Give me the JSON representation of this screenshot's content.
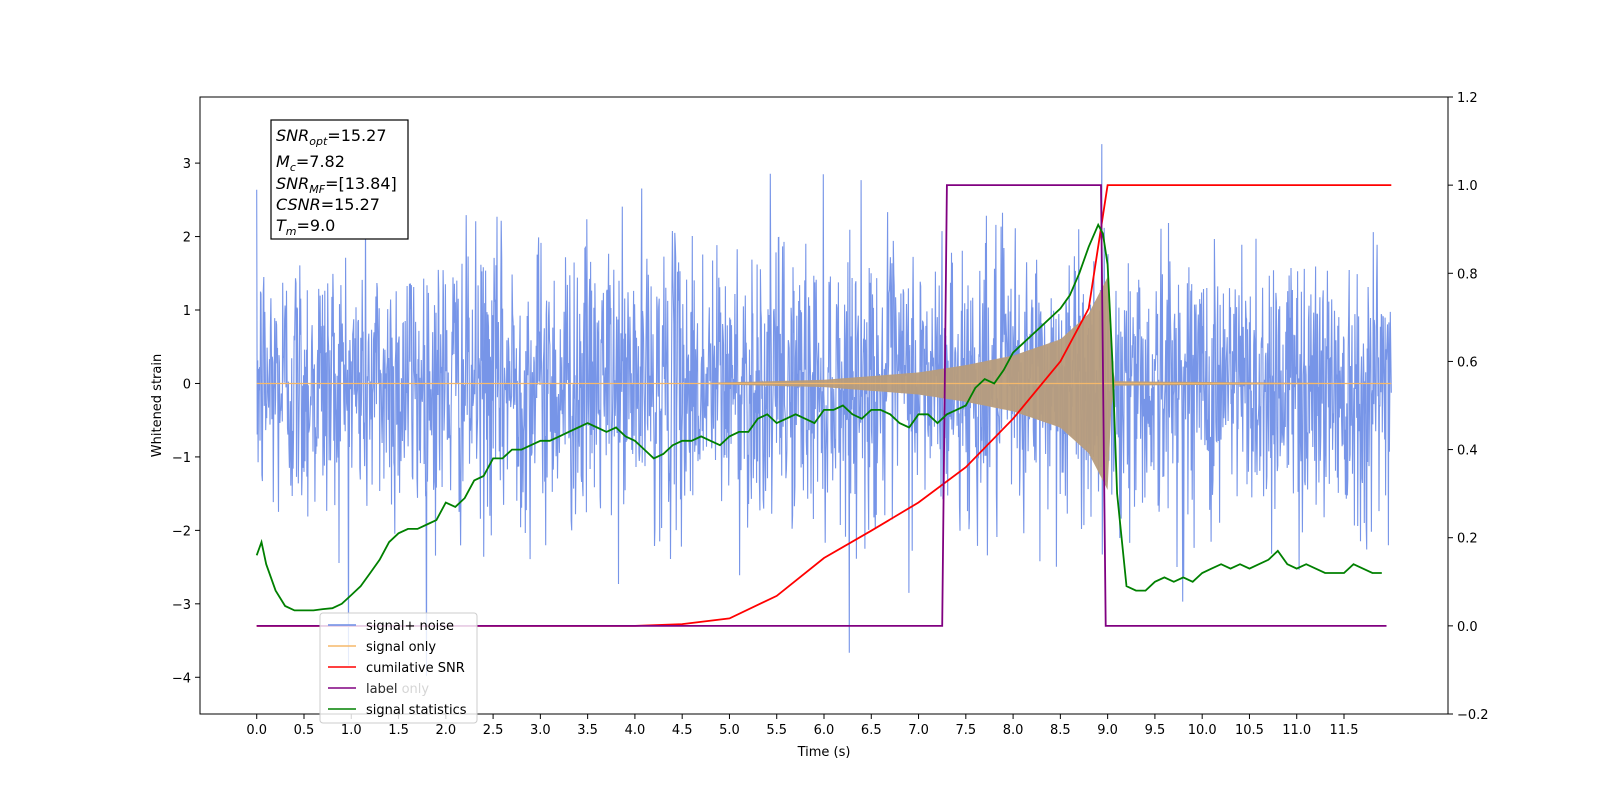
{
  "chart_data": {
    "type": "line",
    "title": "",
    "xlabel": "Time (s)",
    "ylabel": "Whitened strain",
    "xlim": [
      -0.6,
      12.6
    ],
    "ylim": [
      -4.5,
      3.9
    ],
    "y2lim": [
      -0.2,
      1.2
    ],
    "x_ticks": [
      0.0,
      0.5,
      1.0,
      1.5,
      2.0,
      2.5,
      3.0,
      3.5,
      4.0,
      4.5,
      5.0,
      5.5,
      6.0,
      6.5,
      7.0,
      7.5,
      8.0,
      8.5,
      9.0,
      9.5,
      10.0,
      10.5,
      11.0,
      11.5
    ],
    "x_tick_labels": [
      "0.0",
      "0.5",
      "1.0",
      "1.5",
      "2.0",
      "2.5",
      "3.0",
      "3.5",
      "4.0",
      "4.5",
      "5.0",
      "5.5",
      "6.0",
      "6.5",
      "7.0",
      "7.5",
      "8.0",
      "8.5",
      "9.0",
      "9.5",
      "10.0",
      "10.5",
      "11.0",
      "11.5"
    ],
    "y_ticks": [
      3,
      2,
      1,
      0,
      -1,
      -2,
      -3,
      -4
    ],
    "y_tick_labels": [
      "3",
      "2",
      "1",
      "0",
      "−1",
      "−2",
      "−3",
      "−4"
    ],
    "y2_ticks": [
      1.2,
      1.0,
      0.8,
      0.6,
      0.4,
      0.2,
      0.0,
      -0.2
    ],
    "y2_tick_labels": [
      "1.2",
      "1.0",
      "0.8",
      "0.6",
      "0.4",
      "0.2",
      "0.0",
      "−0.2"
    ],
    "grid": false,
    "legend_position": "bottom-left",
    "series": [
      {
        "name": "signal+ noise",
        "axis": "left",
        "color": "#6b8ce6",
        "description_stats": {
          "x_range": [
            0.0,
            12.0
          ],
          "typical_amplitude": 1.0,
          "max": 3.4,
          "min": -4.1
        }
      },
      {
        "name": "signal only",
        "axis": "left",
        "color": "#f5b86a",
        "envelope": {
          "x": [
            0.0,
            4.5,
            6.0,
            7.0,
            7.5,
            8.0,
            8.5,
            8.8,
            9.0,
            9.05,
            12.0
          ],
          "y": [
            0.0,
            0.0,
            0.05,
            0.15,
            0.25,
            0.38,
            0.6,
            0.95,
            1.45,
            0.03,
            0.0
          ]
        }
      },
      {
        "name": "cumilative SNR",
        "axis": "right",
        "color": "#ff0000",
        "x": [
          0.0,
          4.0,
          4.5,
          5.0,
          5.5,
          6.0,
          6.5,
          7.0,
          7.5,
          8.0,
          8.5,
          8.8,
          9.0,
          12.0
        ],
        "y": [
          0.0,
          0.0,
          0.004,
          0.017,
          0.068,
          0.154,
          0.216,
          0.28,
          0.36,
          0.47,
          0.6,
          0.72,
          1.0,
          1.0
        ]
      },
      {
        "name": "label",
        "axis": "right",
        "color": "#800080",
        "x": [
          0.0,
          7.25,
          7.3,
          8.93,
          8.98,
          11.95
        ],
        "y": [
          0.0,
          0.0,
          1.0,
          1.0,
          0.0,
          0.0
        ]
      },
      {
        "name": "signal statistics",
        "axis": "right",
        "color": "#008000",
        "x": [
          0.0,
          0.05,
          0.1,
          0.2,
          0.3,
          0.4,
          0.5,
          0.6,
          0.7,
          0.8,
          0.9,
          1.0,
          1.1,
          1.2,
          1.3,
          1.4,
          1.5,
          1.6,
          1.7,
          1.8,
          1.9,
          2.0,
          2.1,
          2.2,
          2.3,
          2.4,
          2.5,
          2.6,
          2.7,
          2.8,
          2.9,
          3.0,
          3.1,
          3.2,
          3.3,
          3.4,
          3.5,
          3.6,
          3.7,
          3.8,
          3.9,
          4.0,
          4.1,
          4.2,
          4.3,
          4.4,
          4.5,
          4.6,
          4.7,
          4.8,
          4.9,
          5.0,
          5.1,
          5.2,
          5.3,
          5.4,
          5.5,
          5.6,
          5.7,
          5.8,
          5.9,
          6.0,
          6.1,
          6.2,
          6.3,
          6.4,
          6.5,
          6.6,
          6.7,
          6.8,
          6.9,
          7.0,
          7.1,
          7.2,
          7.3,
          7.4,
          7.5,
          7.6,
          7.7,
          7.8,
          7.9,
          8.0,
          8.1,
          8.2,
          8.3,
          8.4,
          8.5,
          8.6,
          8.7,
          8.8,
          8.9,
          8.95,
          9.0,
          9.05,
          9.1,
          9.2,
          9.3,
          9.4,
          9.5,
          9.6,
          9.7,
          9.8,
          9.9,
          10.0,
          10.1,
          10.2,
          10.3,
          10.4,
          10.5,
          10.6,
          10.7,
          10.8,
          10.9,
          11.0,
          11.1,
          11.2,
          11.3,
          11.4,
          11.5,
          11.6,
          11.7,
          11.8,
          11.9
        ],
        "y": [
          0.16,
          0.19,
          0.14,
          0.08,
          0.045,
          0.035,
          0.035,
          0.035,
          0.038,
          0.04,
          0.05,
          0.07,
          0.09,
          0.12,
          0.15,
          0.19,
          0.21,
          0.22,
          0.22,
          0.23,
          0.24,
          0.28,
          0.27,
          0.29,
          0.33,
          0.34,
          0.38,
          0.38,
          0.4,
          0.4,
          0.41,
          0.42,
          0.42,
          0.43,
          0.44,
          0.45,
          0.46,
          0.45,
          0.44,
          0.45,
          0.43,
          0.42,
          0.4,
          0.38,
          0.39,
          0.41,
          0.42,
          0.42,
          0.43,
          0.42,
          0.41,
          0.43,
          0.44,
          0.44,
          0.47,
          0.48,
          0.46,
          0.47,
          0.48,
          0.47,
          0.46,
          0.49,
          0.49,
          0.5,
          0.48,
          0.47,
          0.49,
          0.49,
          0.48,
          0.46,
          0.45,
          0.48,
          0.48,
          0.46,
          0.48,
          0.49,
          0.5,
          0.54,
          0.56,
          0.55,
          0.58,
          0.62,
          0.64,
          0.66,
          0.68,
          0.7,
          0.72,
          0.75,
          0.8,
          0.86,
          0.91,
          0.89,
          0.82,
          0.6,
          0.3,
          0.09,
          0.08,
          0.08,
          0.1,
          0.11,
          0.1,
          0.11,
          0.1,
          0.12,
          0.13,
          0.14,
          0.13,
          0.14,
          0.13,
          0.14,
          0.15,
          0.17,
          0.14,
          0.13,
          0.14,
          0.13,
          0.12,
          0.12,
          0.12,
          0.14,
          0.13,
          0.12,
          0.12
        ]
      }
    ],
    "annotations": {
      "snr_opt": "=15.27",
      "mc": "=7.82",
      "snr_mf": "=[13.84]",
      "csnr": "=15.27",
      "tm": "=9.0"
    }
  },
  "info_box": {
    "l1_main": "SNR",
    "l1_sub": "opt",
    "l1_val": "=15.27",
    "l2_main": "M",
    "l2_sub": "c",
    "l2_val": "=7.82",
    "l3_main": "SNR",
    "l3_sub": "MF",
    "l3_val": "=[13.84]",
    "l4_main": "CSNR",
    "l4_val": "=15.27",
    "l5_main": "T",
    "l5_sub": "m",
    "l5_val": "=9.0"
  },
  "legend": {
    "items": [
      "signal+ noise",
      "signal only",
      "cumilative SNR",
      "label",
      "signal statistics"
    ],
    "ghost_text": "label only"
  },
  "colors": {
    "noise": "#6b8ce6",
    "signal": "#f5b86a",
    "signal_fill": "#b79c7c",
    "csnr": "#ff0000",
    "label": "#800080",
    "stats": "#008000"
  }
}
